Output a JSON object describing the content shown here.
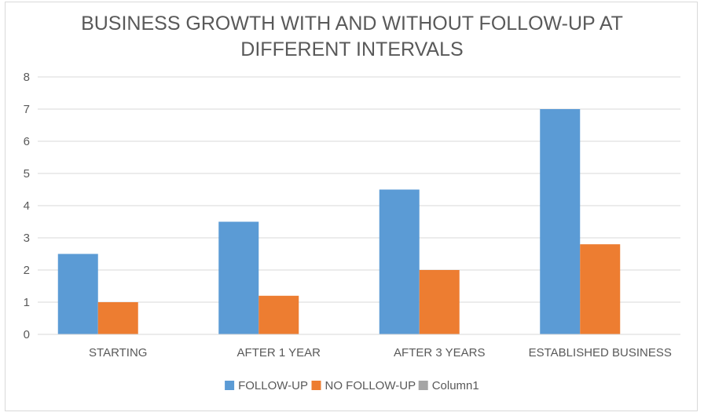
{
  "chart_data": {
    "type": "bar",
    "title_lines": [
      "BUSINESS GROWTH WITH AND WITHOUT FOLLOW-UP AT",
      "DIFFERENT INTERVALS"
    ],
    "categories": [
      "STARTING",
      "AFTER 1 YEAR",
      "AFTER 3 YEARS",
      "ESTABLISHED BUSINESS"
    ],
    "series": [
      {
        "name": "FOLLOW-UP",
        "color": "#5b9bd5",
        "values": [
          2.5,
          3.5,
          4.5,
          7
        ]
      },
      {
        "name": "NO FOLLOW-UP",
        "color": "#ed7d31",
        "values": [
          1,
          1.2,
          2,
          2.8
        ]
      },
      {
        "name": "Column1",
        "color": "#a5a5a5",
        "values": [
          null,
          null,
          null,
          null
        ]
      }
    ],
    "yticks": [
      "0",
      "1",
      "2",
      "3",
      "4",
      "5",
      "6",
      "7",
      "8"
    ],
    "ylim": [
      0,
      8
    ],
    "grid": true,
    "legend_position": "bottom"
  }
}
